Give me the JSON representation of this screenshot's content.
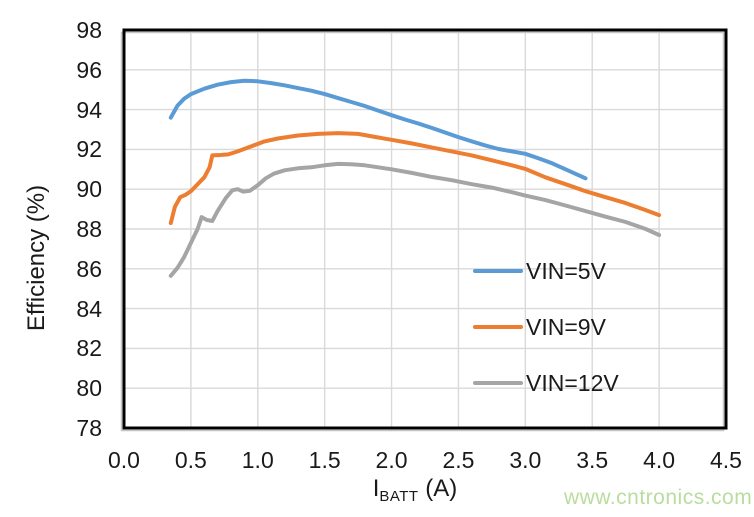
{
  "watermark": {
    "text": "www.cntronics.com",
    "color": "#b9dd9e"
  },
  "styles": {
    "grid_color": "#d9d9d9",
    "axis_border_color": "#000000",
    "axis_shadow_color": "#c6c6c6",
    "text_color": "#1a1a1a"
  },
  "chart_data": {
    "type": "line",
    "title": "",
    "ylabel": "Efficiency (%)",
    "xlabel": {
      "main": "I",
      "sub": "BATT",
      "unit": " (A)"
    },
    "xlim": [
      0,
      4.5
    ],
    "ylim": [
      78,
      98
    ],
    "x_tick_values": [
      0.0,
      0.5,
      1.0,
      1.5,
      2.0,
      2.5,
      3.0,
      3.5,
      4.0,
      4.5
    ],
    "x_tick_labels": [
      "0.0",
      "0.5",
      "1.0",
      "1.5",
      "2.0",
      "2.5",
      "3.0",
      "3.5",
      "4.0",
      "4.5"
    ],
    "y_tick_values": [
      78,
      80,
      82,
      84,
      86,
      88,
      90,
      92,
      94,
      96,
      98
    ],
    "y_tick_labels": [
      "78",
      "80",
      "82",
      "84",
      "86",
      "88",
      "90",
      "92",
      "94",
      "96",
      "98"
    ],
    "grid": true,
    "legend_position": "inside right",
    "series": [
      {
        "name": "VIN=5V",
        "color": "#5b9bd5",
        "points": [
          [
            0.35,
            93.6
          ],
          [
            0.4,
            94.2
          ],
          [
            0.45,
            94.55
          ],
          [
            0.5,
            94.78
          ],
          [
            0.6,
            95.05
          ],
          [
            0.7,
            95.25
          ],
          [
            0.8,
            95.38
          ],
          [
            0.9,
            95.45
          ],
          [
            1.0,
            95.42
          ],
          [
            1.1,
            95.33
          ],
          [
            1.2,
            95.22
          ],
          [
            1.3,
            95.08
          ],
          [
            1.4,
            94.95
          ],
          [
            1.5,
            94.78
          ],
          [
            1.6,
            94.58
          ],
          [
            1.7,
            94.38
          ],
          [
            1.8,
            94.18
          ],
          [
            1.9,
            93.95
          ],
          [
            2.0,
            93.72
          ],
          [
            2.1,
            93.5
          ],
          [
            2.2,
            93.3
          ],
          [
            2.3,
            93.08
          ],
          [
            2.4,
            92.85
          ],
          [
            2.5,
            92.62
          ],
          [
            2.6,
            92.4
          ],
          [
            2.7,
            92.2
          ],
          [
            2.8,
            92.02
          ],
          [
            2.9,
            91.9
          ],
          [
            3.0,
            91.78
          ],
          [
            3.1,
            91.55
          ],
          [
            3.2,
            91.3
          ],
          [
            3.3,
            91.0
          ],
          [
            3.45,
            90.55
          ]
        ]
      },
      {
        "name": "VIN=9V",
        "color": "#ed7d31",
        "points": [
          [
            0.35,
            88.3
          ],
          [
            0.38,
            89.1
          ],
          [
            0.42,
            89.6
          ],
          [
            0.46,
            89.72
          ],
          [
            0.5,
            89.9
          ],
          [
            0.55,
            90.25
          ],
          [
            0.6,
            90.6
          ],
          [
            0.64,
            91.1
          ],
          [
            0.66,
            91.7
          ],
          [
            0.72,
            91.72
          ],
          [
            0.78,
            91.75
          ],
          [
            0.85,
            91.9
          ],
          [
            0.95,
            92.15
          ],
          [
            1.05,
            92.4
          ],
          [
            1.15,
            92.55
          ],
          [
            1.3,
            92.7
          ],
          [
            1.45,
            92.78
          ],
          [
            1.6,
            92.82
          ],
          [
            1.75,
            92.78
          ],
          [
            1.9,
            92.6
          ],
          [
            2.0,
            92.48
          ],
          [
            2.15,
            92.3
          ],
          [
            2.3,
            92.1
          ],
          [
            2.45,
            91.9
          ],
          [
            2.6,
            91.7
          ],
          [
            2.75,
            91.45
          ],
          [
            2.9,
            91.2
          ],
          [
            3.0,
            91.02
          ],
          [
            3.15,
            90.6
          ],
          [
            3.3,
            90.25
          ],
          [
            3.45,
            89.9
          ],
          [
            3.6,
            89.6
          ],
          [
            3.75,
            89.3
          ],
          [
            3.9,
            88.95
          ],
          [
            4.0,
            88.7
          ]
        ]
      },
      {
        "name": "VIN=12V",
        "color": "#a5a5a5",
        "points": [
          [
            0.35,
            85.65
          ],
          [
            0.4,
            86.05
          ],
          [
            0.45,
            86.6
          ],
          [
            0.5,
            87.3
          ],
          [
            0.55,
            88.0
          ],
          [
            0.58,
            88.6
          ],
          [
            0.62,
            88.45
          ],
          [
            0.66,
            88.4
          ],
          [
            0.7,
            88.9
          ],
          [
            0.76,
            89.55
          ],
          [
            0.81,
            89.95
          ],
          [
            0.85,
            90.0
          ],
          [
            0.89,
            89.88
          ],
          [
            0.94,
            89.92
          ],
          [
            1.0,
            90.2
          ],
          [
            1.06,
            90.55
          ],
          [
            1.12,
            90.78
          ],
          [
            1.2,
            90.95
          ],
          [
            1.3,
            91.05
          ],
          [
            1.4,
            91.1
          ],
          [
            1.5,
            91.2
          ],
          [
            1.6,
            91.27
          ],
          [
            1.7,
            91.25
          ],
          [
            1.8,
            91.2
          ],
          [
            1.9,
            91.1
          ],
          [
            2.0,
            91.0
          ],
          [
            2.15,
            90.82
          ],
          [
            2.3,
            90.62
          ],
          [
            2.45,
            90.45
          ],
          [
            2.6,
            90.25
          ],
          [
            2.75,
            90.08
          ],
          [
            2.9,
            89.85
          ],
          [
            3.0,
            89.68
          ],
          [
            3.15,
            89.45
          ],
          [
            3.3,
            89.18
          ],
          [
            3.45,
            88.9
          ],
          [
            3.6,
            88.62
          ],
          [
            3.75,
            88.35
          ],
          [
            3.9,
            88.0
          ],
          [
            4.0,
            87.7
          ]
        ]
      }
    ]
  }
}
